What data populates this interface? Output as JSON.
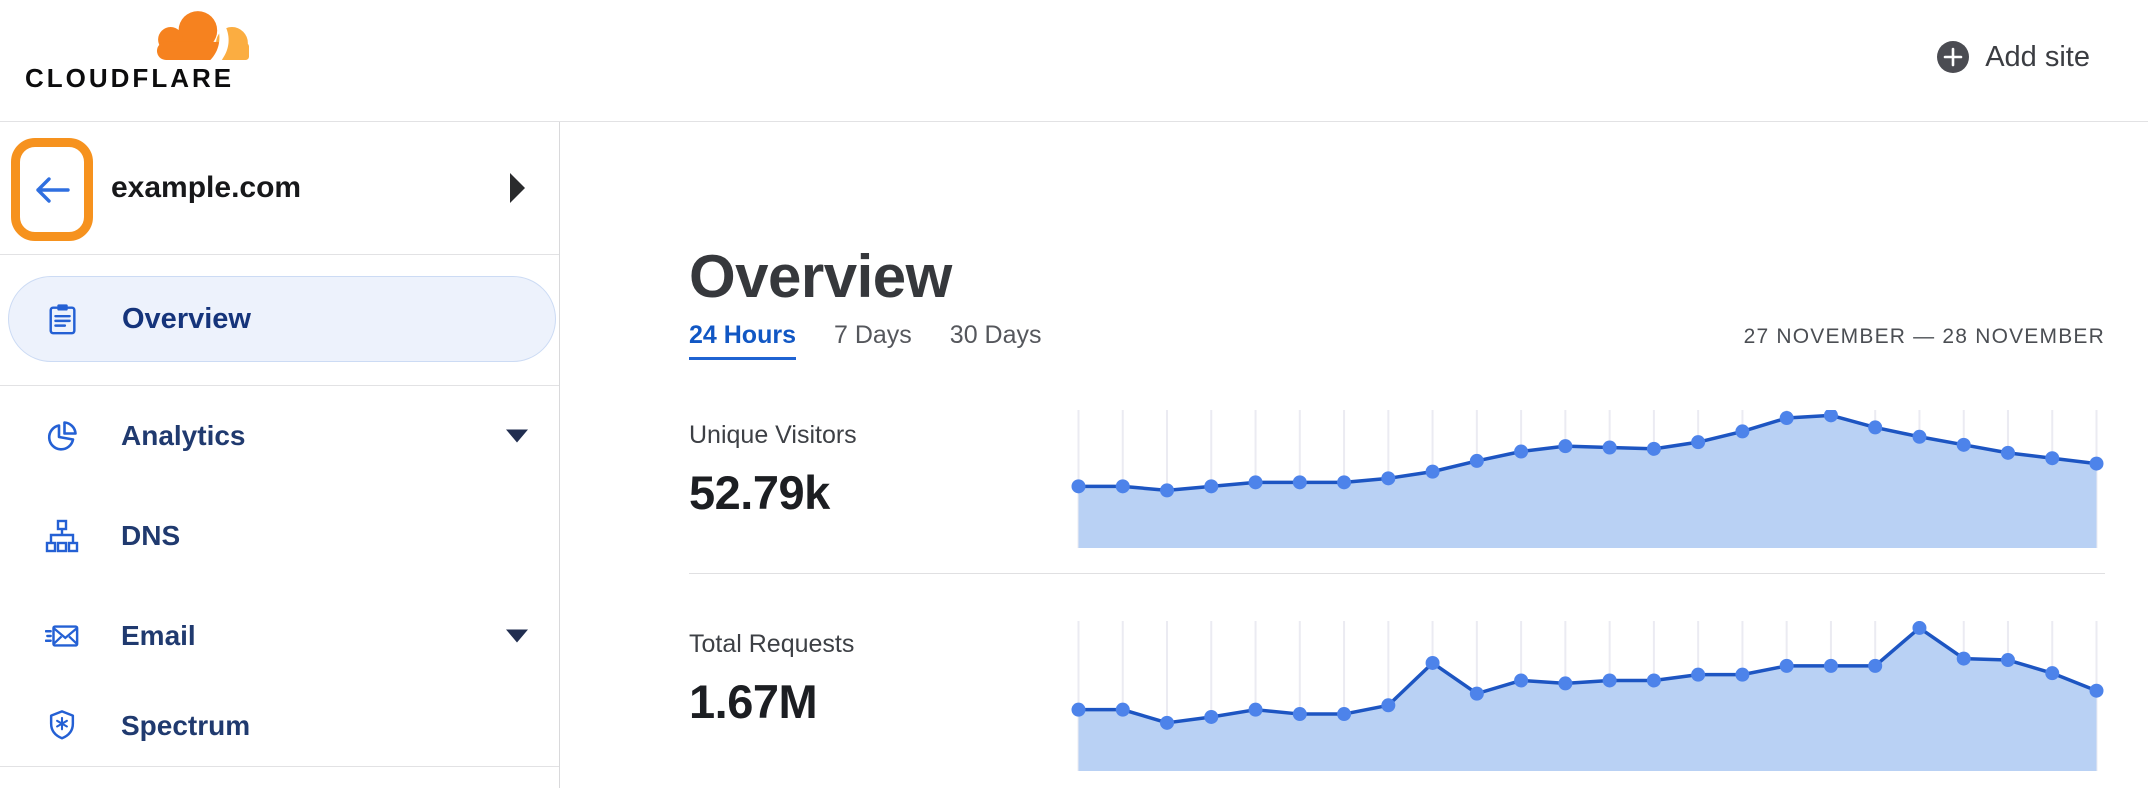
{
  "header": {
    "logo_text": "CLOUDFLARE",
    "add_site_label": "Add site"
  },
  "sidebar": {
    "site_name": "example.com",
    "items": [
      {
        "label": "Overview",
        "icon": "clipboard-icon",
        "active": true,
        "expandable": false
      },
      {
        "label": "Analytics",
        "icon": "pie-chart-icon",
        "active": false,
        "expandable": true
      },
      {
        "label": "DNS",
        "icon": "network-icon",
        "active": false,
        "expandable": false
      },
      {
        "label": "Email",
        "icon": "email-icon",
        "active": false,
        "expandable": true
      },
      {
        "label": "Spectrum",
        "icon": "shield-icon",
        "active": false,
        "expandable": false
      }
    ]
  },
  "main": {
    "title": "Overview",
    "tabs": [
      {
        "label": "24 Hours",
        "active": true
      },
      {
        "label": "7 Days",
        "active": false
      },
      {
        "label": "30 Days",
        "active": false
      }
    ],
    "date_range": "27 NOVEMBER — 28 NOVEMBER",
    "stats": [
      {
        "label": "Unique Visitors",
        "value": "52.79k"
      },
      {
        "label": "Total Requests",
        "value": "1.67M"
      }
    ]
  },
  "chart_data": [
    {
      "type": "area",
      "title": "Unique Visitors",
      "total_label": "52.79k",
      "x_description": "24 hourly points, 27 November — 28 November (no axis labels shown)",
      "units": "relative height, percent of chart max (no y-axis shown)",
      "values": [
        46,
        46,
        43,
        46,
        49,
        49,
        49,
        52,
        57,
        65,
        72,
        76,
        75,
        74,
        79,
        87,
        97,
        99,
        90,
        83,
        77,
        71,
        67,
        63
      ],
      "ylim": [
        0,
        100
      ],
      "grid": "vertical-only",
      "legend": "none"
    },
    {
      "type": "area",
      "title": "Total Requests",
      "total_label": "1.67M",
      "x_description": "24 hourly points, 27 November — 28 November (no axis labels shown)",
      "units": "relative height, percent of chart max (no y-axis shown)",
      "values": [
        42,
        42,
        33,
        37,
        42,
        39,
        39,
        45,
        74,
        53,
        62,
        60,
        62,
        62,
        66,
        66,
        72,
        72,
        72,
        98,
        77,
        76,
        67,
        55
      ],
      "ylim": [
        0,
        100
      ],
      "grid": "vertical-only",
      "legend": "none"
    }
  ],
  "colors": {
    "brand_orange": "#f6821f",
    "brand_orange_light": "#fbad41",
    "highlight_orange": "#f6921e",
    "accent_blue": "#1157c4",
    "chart_line": "#1d55c2",
    "chart_dot": "#4d83ea",
    "chart_area": "#b9d1f4",
    "chart_gridline": "#ebebf2",
    "sidebar_icon_blue": "#2460d4",
    "active_item_bg": "#edf2fc"
  }
}
